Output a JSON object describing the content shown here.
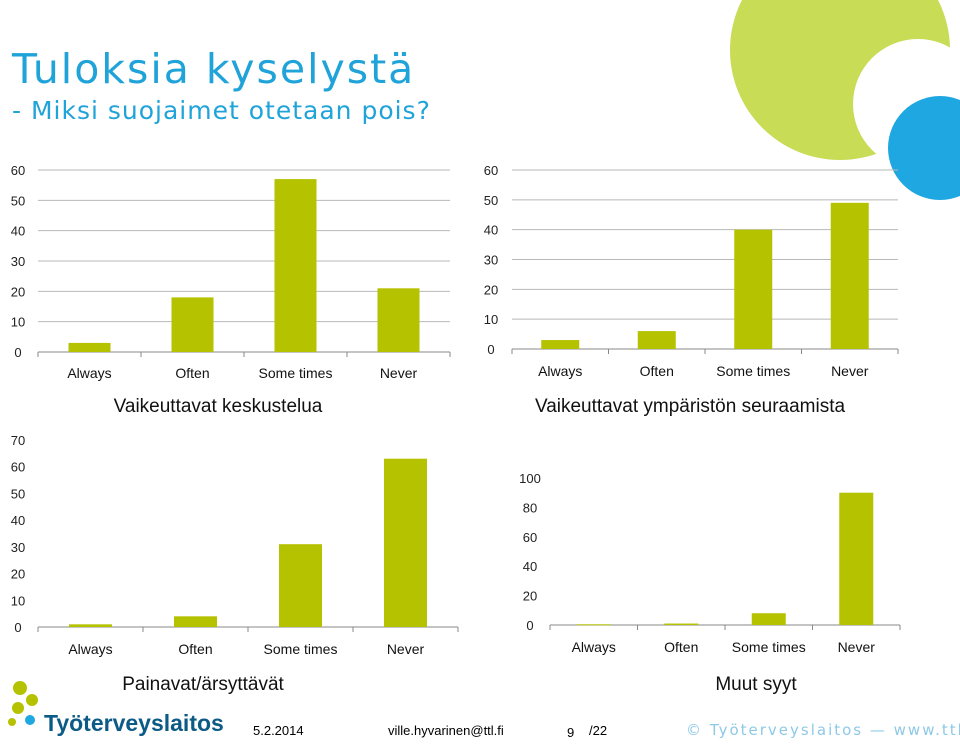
{
  "slide": {
    "title": "Tuloksia kyselystä",
    "subtitle": "- Miksi suojaimet otetaan pois?"
  },
  "colors": {
    "bar": "#b5c200",
    "title": "#1fa3d8",
    "circle_green": "#c8dc56",
    "circle_blue": "#1ea7e0",
    "logo": "#0c5a86"
  },
  "footer": {
    "date": "5.2.2014",
    "email": "ville.hyvarinen@ttl.fi",
    "page": "9",
    "page_total": "/22",
    "copyright": "© Työterveyslaitos  —  www.ttl.fi",
    "logo_text": "Työterveyslaitos"
  },
  "chart_data": [
    {
      "type": "bar",
      "title": "Vaikeuttavat keskustelua",
      "categories": [
        "Always",
        "Often",
        "Some times",
        "Never"
      ],
      "values": [
        3,
        18,
        57,
        21
      ],
      "ylim": [
        0,
        60
      ],
      "yticks": [
        0,
        10,
        20,
        30,
        40,
        50,
        60
      ],
      "grid": true
    },
    {
      "type": "bar",
      "title": "Vaikeuttavat ympäristön seuraamista",
      "categories": [
        "Always",
        "Often",
        "Some times",
        "Never"
      ],
      "values": [
        3,
        6,
        40,
        49
      ],
      "ylim": [
        0,
        60
      ],
      "yticks": [
        0,
        10,
        20,
        30,
        40,
        50,
        60
      ],
      "grid": true
    },
    {
      "type": "bar",
      "title": "Painavat/ärsyttävät",
      "categories": [
        "Always",
        "Often",
        "Some times",
        "Never"
      ],
      "values": [
        1,
        4,
        31,
        63
      ],
      "ylim": [
        0,
        70
      ],
      "yticks": [
        0,
        10,
        20,
        30,
        40,
        50,
        60,
        70
      ],
      "grid": false
    },
    {
      "type": "bar",
      "title": "Muut syyt",
      "categories": [
        "Always",
        "Often",
        "Some times",
        "Never"
      ],
      "values": [
        0.5,
        1,
        8,
        90
      ],
      "ylim": [
        0,
        100
      ],
      "yticks": [
        0,
        20,
        40,
        60,
        80,
        100
      ],
      "grid": false
    }
  ]
}
